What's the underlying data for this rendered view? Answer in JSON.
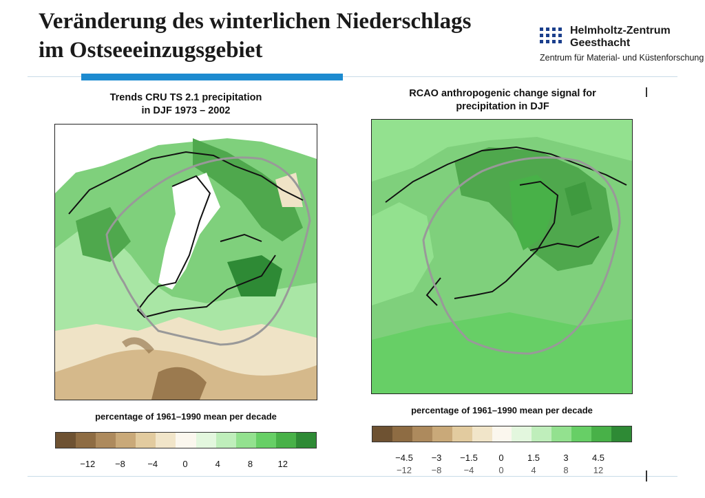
{
  "title": {
    "line1": "Veränderung des winterlichen Niederschlags",
    "line2": "im Ostseeeinzugsgebiet"
  },
  "logo": {
    "org_line1": "Helmholtz-Zentrum",
    "org_line2": "Geesthacht",
    "subtitle": "Zentrum für Material- und Küstenforschung"
  },
  "panels": [
    {
      "title_line1": "Trends CRU TS 2.1 precipitation",
      "title_line2": "in DJF 1973 – 2002",
      "caption": "percentage of 1961–1990 mean per decade",
      "colorbar_ticks": [
        "−12",
        "−8",
        "−4",
        "0",
        "4",
        "8",
        "12"
      ]
    },
    {
      "title_line1": "RCAO anthropogenic change signal for",
      "title_line2": "precipitation in DJF",
      "caption": "percentage of 1961–1990 mean per decade",
      "colorbar_ticks": [
        "−4.5",
        "−3",
        "−1.5",
        "0",
        "1.5",
        "3",
        "4.5"
      ],
      "colorbar_ticks_hidden": [
        "−12",
        "−8",
        "−4",
        "0",
        "4",
        "8",
        "12"
      ]
    }
  ],
  "colors": {
    "accent": "#1d8bd0",
    "scale": [
      "#6e5232",
      "#8e6c43",
      "#ad8a5d",
      "#c9a979",
      "#e2cb9f",
      "#f1e5c9",
      "#fbf7ee",
      "#e3f7de",
      "#bfeebb",
      "#93e18f",
      "#67cf66",
      "#48b148",
      "#2e8a35"
    ]
  }
}
